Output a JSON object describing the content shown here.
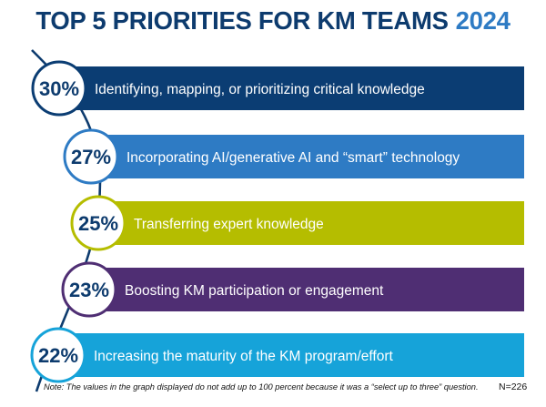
{
  "header": {
    "title": "TOP 5 PRIORITIES FOR KM TEAMS",
    "year": "2024"
  },
  "chart_data": {
    "type": "bar",
    "title": "TOP 5 PRIORITIES FOR KM TEAMS 2024",
    "unit": "%",
    "categories": [
      "Identifying, mapping, or prioritizing critical knowledge",
      "Incorporating AI/generative AI and “smart” technology",
      "Transferring expert knowledge",
      "Boosting KM participation or engagement",
      "Increasing the maturity of the KM program/effort"
    ],
    "values": [
      30,
      27,
      25,
      23,
      22
    ],
    "value_labels": [
      "30%",
      "27%",
      "25%",
      "23%",
      "22%"
    ],
    "colors": [
      "#0b3d73",
      "#2e7bc4",
      "#b5bd00",
      "#4f2e73",
      "#16a3d9"
    ],
    "curve_color": "#0d3b6e"
  },
  "footer": {
    "note": "Note: The values in the graph displayed do not add up to 100 percent because it was a “select up to three” question.",
    "sample_size": "N=226"
  }
}
